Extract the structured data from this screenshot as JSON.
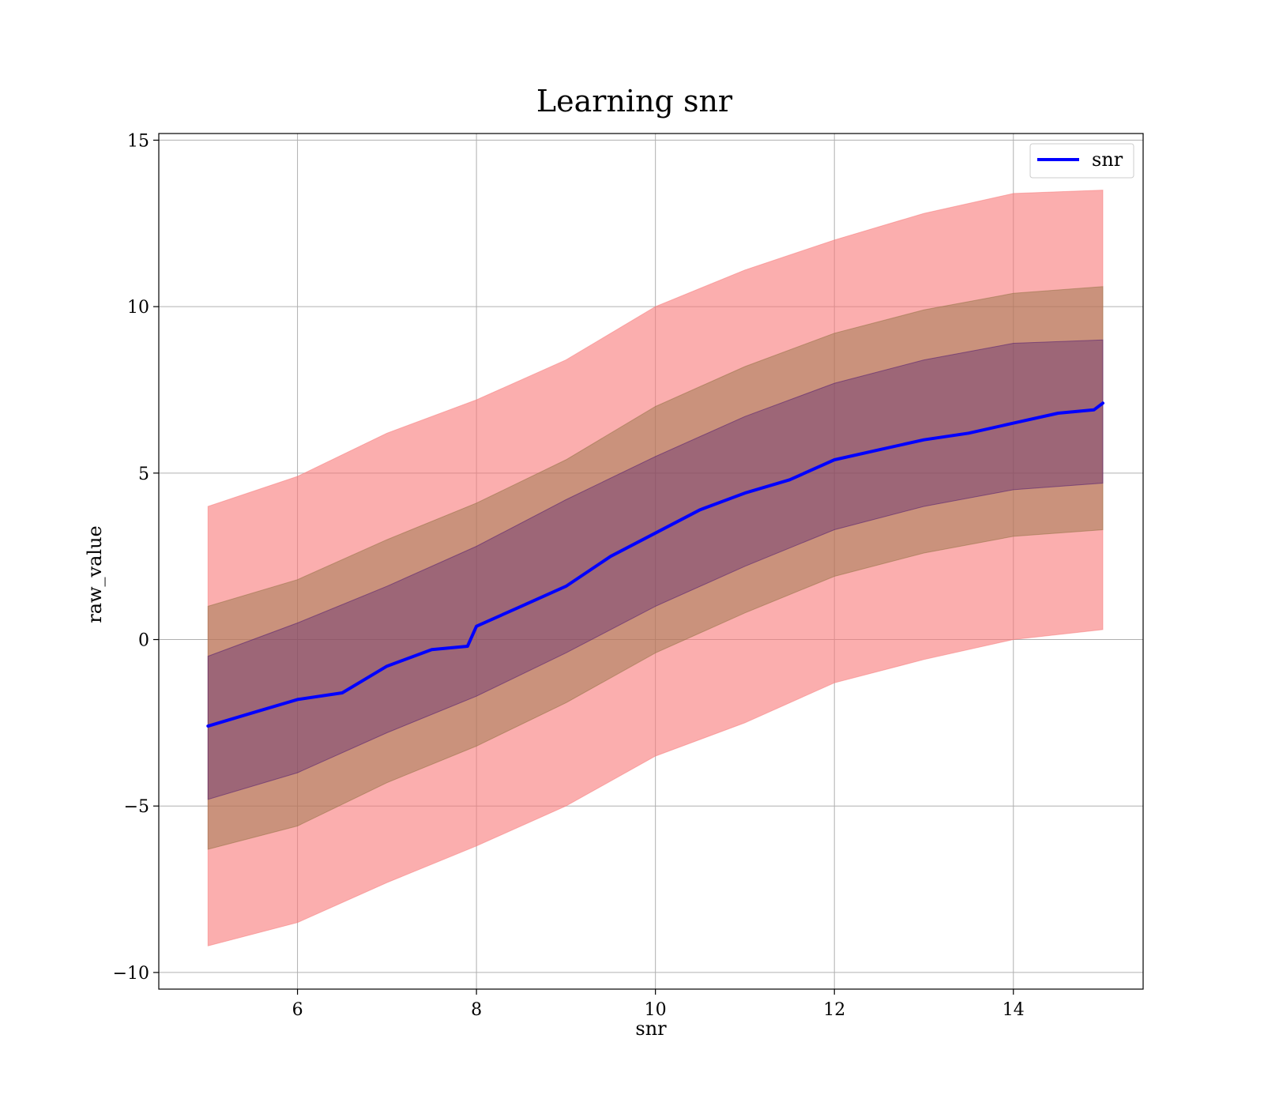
{
  "chart_data": {
    "type": "line",
    "title": "Learning snr",
    "xlabel": "snr",
    "ylabel": "raw_value",
    "xlim": [
      4.45,
      15.45
    ],
    "ylim": [
      -10.5,
      15.2
    ],
    "xticks": [
      6,
      8,
      10,
      12,
      14
    ],
    "yticks": [
      -10,
      -5,
      0,
      5,
      10,
      15
    ],
    "xtick_labels": [
      "6",
      "8",
      "10",
      "12",
      "14"
    ],
    "ytick_labels": [
      "−10",
      "−5",
      "0",
      "5",
      "10",
      "15"
    ],
    "grid": true,
    "legend": {
      "position": "top-right",
      "entries": [
        {
          "name": "snr",
          "color": "#0000ff"
        }
      ]
    },
    "series": [
      {
        "name": "snr",
        "color": "#0000ff",
        "x": [
          5.0,
          5.5,
          6.0,
          6.5,
          7.0,
          7.5,
          7.9,
          8.0,
          8.5,
          9.0,
          9.5,
          10.0,
          10.5,
          11.0,
          11.5,
          12.0,
          12.5,
          13.0,
          13.5,
          14.0,
          14.5,
          14.9,
          15.0
        ],
        "y": [
          -2.6,
          -2.2,
          -1.8,
          -1.6,
          -0.8,
          -0.3,
          -0.2,
          0.4,
          1.0,
          1.6,
          2.5,
          3.2,
          3.9,
          4.4,
          4.8,
          5.4,
          5.7,
          6.0,
          6.2,
          6.5,
          6.8,
          6.9,
          7.1
        ]
      }
    ],
    "bands": [
      {
        "color": "#f87878",
        "opacity": 0.6,
        "x": [
          5.0,
          6.0,
          7.0,
          8.0,
          9.0,
          10.0,
          11.0,
          12.0,
          13.0,
          14.0,
          15.0
        ],
        "lower": [
          -9.2,
          -8.5,
          -7.3,
          -6.2,
          -5.0,
          -3.5,
          -2.5,
          -1.3,
          -0.6,
          0.0,
          0.3
        ],
        "upper": [
          4.0,
          4.9,
          6.2,
          7.2,
          8.4,
          10.0,
          11.1,
          12.0,
          12.8,
          13.4,
          13.5
        ]
      },
      {
        "color": "#8f7040",
        "opacity": 0.45,
        "x": [
          5.0,
          6.0,
          7.0,
          8.0,
          9.0,
          10.0,
          11.0,
          12.0,
          13.0,
          14.0,
          15.0
        ],
        "lower": [
          -6.3,
          -5.6,
          -4.3,
          -3.2,
          -1.9,
          -0.4,
          0.8,
          1.9,
          2.6,
          3.1,
          3.3
        ],
        "upper": [
          1.0,
          1.8,
          3.0,
          4.1,
          5.4,
          7.0,
          8.2,
          9.2,
          9.9,
          10.4,
          10.6
        ]
      },
      {
        "color": "#4a1470",
        "opacity": 0.35,
        "x": [
          5.0,
          6.0,
          7.0,
          8.0,
          9.0,
          10.0,
          11.0,
          12.0,
          13.0,
          14.0,
          15.0
        ],
        "lower": [
          -4.8,
          -4.0,
          -2.8,
          -1.7,
          -0.4,
          1.0,
          2.2,
          3.3,
          4.0,
          4.5,
          4.7
        ],
        "upper": [
          -0.5,
          0.5,
          1.6,
          2.8,
          4.2,
          5.5,
          6.7,
          7.7,
          8.4,
          8.9,
          9.0
        ]
      }
    ]
  }
}
